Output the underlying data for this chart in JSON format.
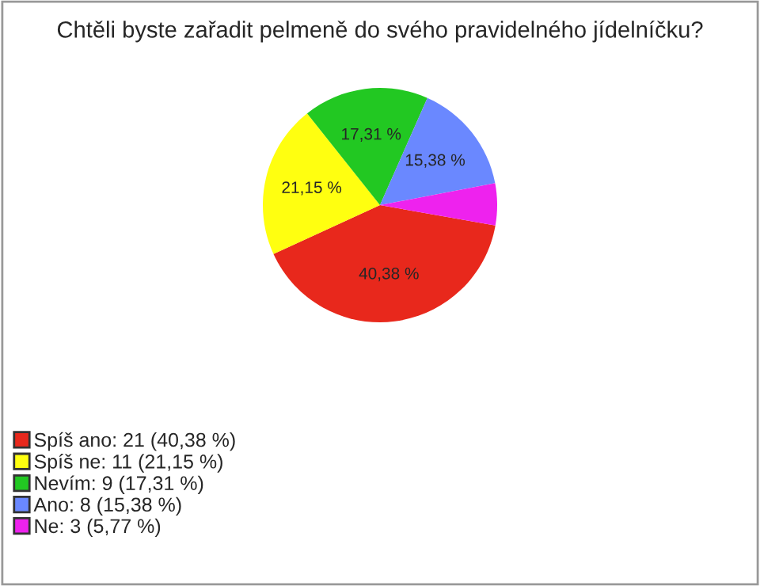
{
  "chart_data": {
    "type": "pie",
    "title": "Chtěli byste zařadit pelmeně do svého pravidelného jídelníčku?",
    "categories": [
      "Spíš ano: 21 (40,38 %)",
      "Spíš ne: 11 (21,15 %)",
      "Nevím: 9 (17,31 %)",
      "Ano: 8 (15,38 %)",
      "Ne: 3 (5,77 %)"
    ],
    "values": [
      40.38,
      21.15,
      17.31,
      15.38,
      5.77
    ],
    "value_labels": [
      "40,38 %",
      "21,15 %",
      "17,31 %",
      "15,38 %",
      null
    ],
    "colors": [
      "#e8281c",
      "#ffff10",
      "#22c822",
      "#6a88ff",
      "#ee22ee"
    ],
    "legend": "bottom left"
  }
}
